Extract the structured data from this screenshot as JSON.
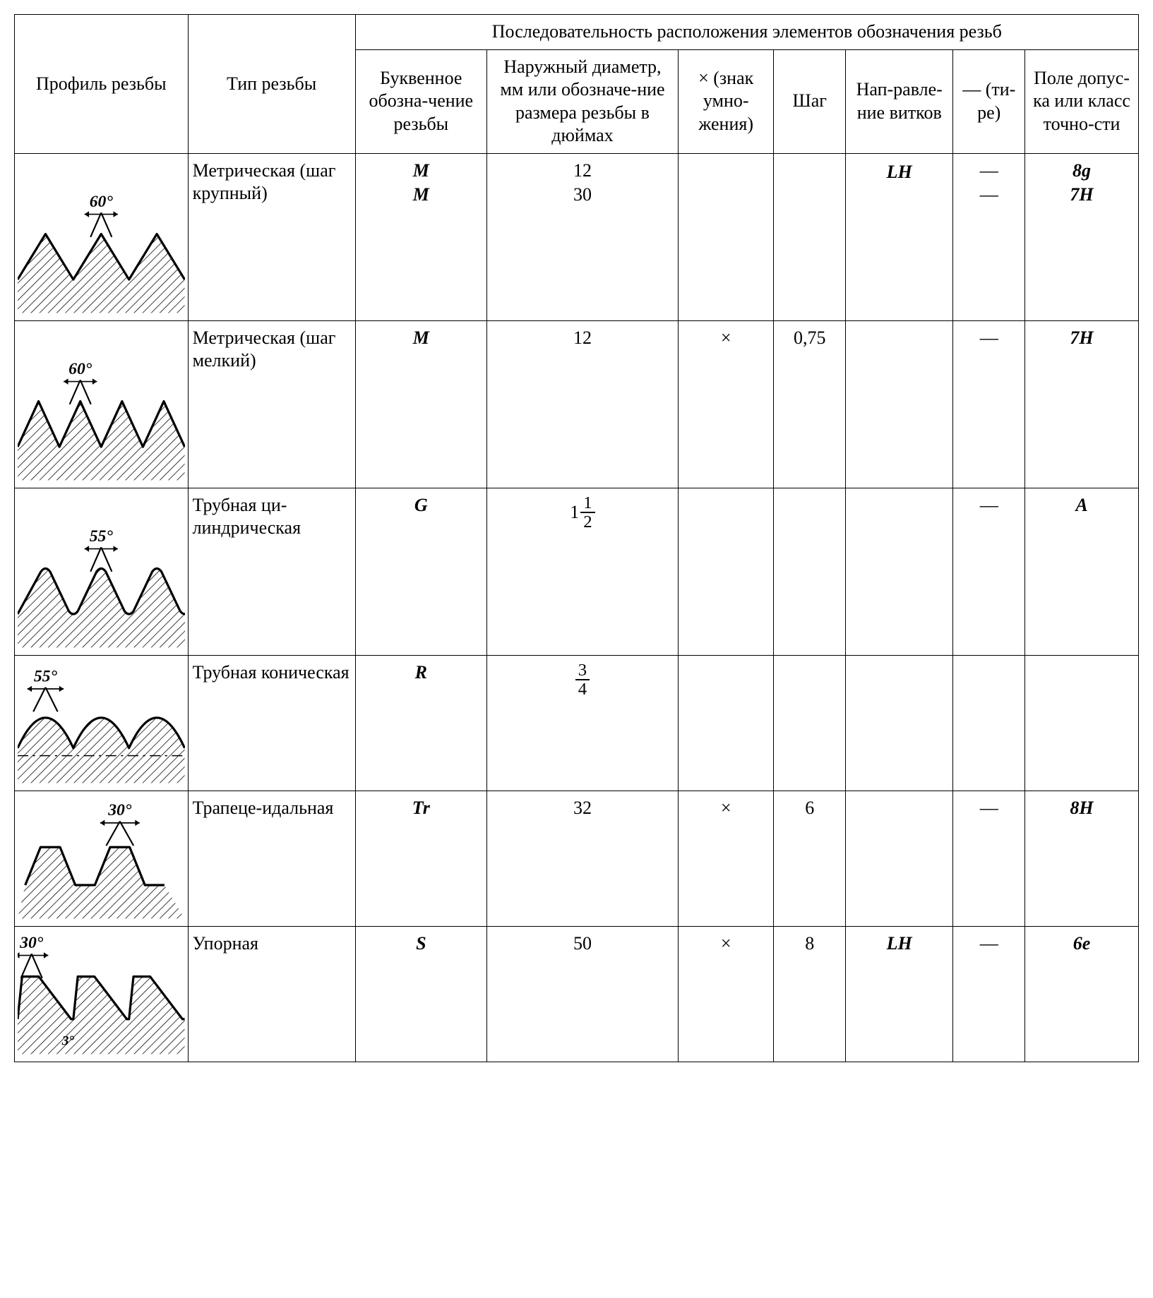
{
  "headers": {
    "profile": "Профиль резьбы",
    "type": "Тип резьбы",
    "sequence": "Последовательность расположения элементов обозначения резьб",
    "letter": "Буквенное обозна-чение резьбы",
    "diameter": "Наружный диаметр, мм или обозначе-ние размера резьбы в дюймах",
    "mult": "× (знак умно-жения)",
    "pitch": "Шаг",
    "direction": "Нап-равле-ние витков",
    "dash": "— (ти-ре)",
    "tolerance": "Поле допус-ка или класс точно-сти"
  },
  "rows": [
    {
      "profile": {
        "kind": "sharpV",
        "angle": "60°",
        "peaks": 3
      },
      "type": "Метрическая (шаг крупный)",
      "letter": [
        "M",
        "M"
      ],
      "diameter": [
        "12",
        "30"
      ],
      "mult": [
        "",
        ""
      ],
      "pitch": [
        "",
        ""
      ],
      "direction": [
        "",
        "LH"
      ],
      "dash": [
        "—",
        "—"
      ],
      "tolerance": [
        "8g",
        "7H"
      ]
    },
    {
      "profile": {
        "kind": "sharpV",
        "angle": "60°",
        "peaks": 4
      },
      "type": "Метрическая (шаг мелкий)",
      "letter": "M",
      "diameter": "12",
      "mult": "×",
      "pitch": "0,75",
      "direction": "",
      "dash": "—",
      "tolerance": "7H"
    },
    {
      "profile": {
        "kind": "roundedV",
        "angle": "55°",
        "peaks": 3
      },
      "type": "Трубная ци-линдрическая",
      "letter": "G",
      "diameter": {
        "mixed": {
          "whole": "1",
          "num": "1",
          "den": "2"
        }
      },
      "mult": "",
      "pitch": "",
      "direction": "",
      "dash": "—",
      "tolerance": "A"
    },
    {
      "profile": {
        "kind": "roundedShallow",
        "angle": "55°",
        "peaks": 3
      },
      "type": "Трубная коническая",
      "letter": "R",
      "diameter": {
        "frac": {
          "num": "3",
          "den": "4"
        }
      },
      "mult": "",
      "pitch": "",
      "direction": "",
      "dash": "",
      "tolerance": ""
    },
    {
      "profile": {
        "kind": "trapezoid",
        "angle": "30°",
        "peaks": 2
      },
      "type": "Трапеце-идальная",
      "letter": "Tr",
      "diameter": "32",
      "mult": "×",
      "pitch": "6",
      "direction": "",
      "dash": "—",
      "tolerance": "8H"
    },
    {
      "profile": {
        "kind": "buttress",
        "angle": "30°",
        "angle2": "3°",
        "peaks": 3
      },
      "type": "Упорная",
      "letter": "S",
      "diameter": "50",
      "mult": "×",
      "pitch": "8",
      "direction": "LH",
      "dash": "—",
      "tolerance": "6e"
    }
  ],
  "style": {
    "stroke": "#000000",
    "hatchSpacing": 6,
    "fontSize": 26,
    "angleFontStyle": "italic bold"
  }
}
